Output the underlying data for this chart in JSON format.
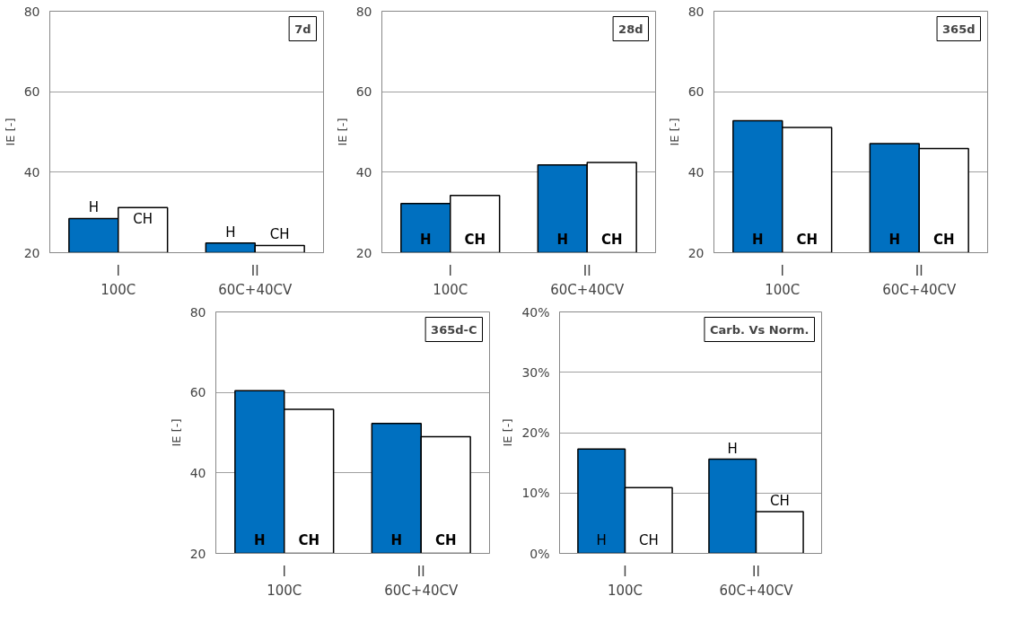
{
  "chart_data": [
    {
      "type": "bar",
      "title": "7d",
      "ylabel": "IE [-]",
      "categories": [
        "I\n100C",
        "II\n60C+40CV"
      ],
      "ylim": [
        20,
        80
      ],
      "yticks": [
        20,
        40,
        60,
        80
      ],
      "grid": "y",
      "series": [
        {
          "name": "H",
          "color": "#0070c0",
          "values": [
            28.5,
            22.4
          ]
        },
        {
          "name": "CH",
          "color": "#ffffff",
          "values": [
            31.2,
            21.8
          ]
        }
      ]
    },
    {
      "type": "bar",
      "title": "28d",
      "ylabel": "IE [-]",
      "categories": [
        "I\n100C",
        "II\n60C+40CV"
      ],
      "ylim": [
        20,
        80
      ],
      "yticks": [
        20,
        40,
        60,
        80
      ],
      "grid": "y",
      "series": [
        {
          "name": "H",
          "color": "#0070c0",
          "values": [
            32.2,
            41.8
          ]
        },
        {
          "name": "CH",
          "color": "#ffffff",
          "values": [
            34.2,
            42.4
          ]
        }
      ]
    },
    {
      "type": "bar",
      "title": "365d",
      "ylabel": "IE [-]",
      "categories": [
        "I\n100C",
        "II\n60C+40CV"
      ],
      "ylim": [
        20,
        80
      ],
      "yticks": [
        20,
        40,
        60,
        80
      ],
      "grid": "y",
      "series": [
        {
          "name": "H",
          "color": "#0070c0",
          "values": [
            52.8,
            47.1
          ]
        },
        {
          "name": "CH",
          "color": "#ffffff",
          "values": [
            51.1,
            45.9
          ]
        }
      ]
    },
    {
      "type": "bar",
      "title": "365d-C",
      "ylabel": "IE [-]",
      "categories": [
        "I\n100C",
        "II\n60C+40CV"
      ],
      "ylim": [
        20,
        80
      ],
      "yticks": [
        20,
        40,
        60,
        80
      ],
      "grid": "y",
      "series": [
        {
          "name": "H",
          "color": "#0070c0",
          "values": [
            60.4,
            52.3
          ]
        },
        {
          "name": "CH",
          "color": "#ffffff",
          "values": [
            55.8,
            49.0
          ]
        }
      ]
    },
    {
      "type": "bar",
      "title": "Carb. Vs Norm.",
      "ylabel": "IE [-]",
      "categories": [
        "I\n100C",
        "II\n60C+40CV"
      ],
      "ylim": [
        0,
        40
      ],
      "yticks": [
        {
          "value": 0,
          "label": "0%"
        },
        {
          "value": 10,
          "label": "10%"
        },
        {
          "value": 20,
          "label": "20%"
        },
        {
          "value": 30,
          "label": "30%"
        },
        {
          "value": 40,
          "label": "40%"
        }
      ],
      "grid": "y",
      "series": [
        {
          "name": "H",
          "color": "#0070c0",
          "values": [
            17.3,
            15.6
          ]
        },
        {
          "name": "CH",
          "color": "#ffffff",
          "values": [
            10.9,
            6.9
          ]
        }
      ]
    }
  ]
}
